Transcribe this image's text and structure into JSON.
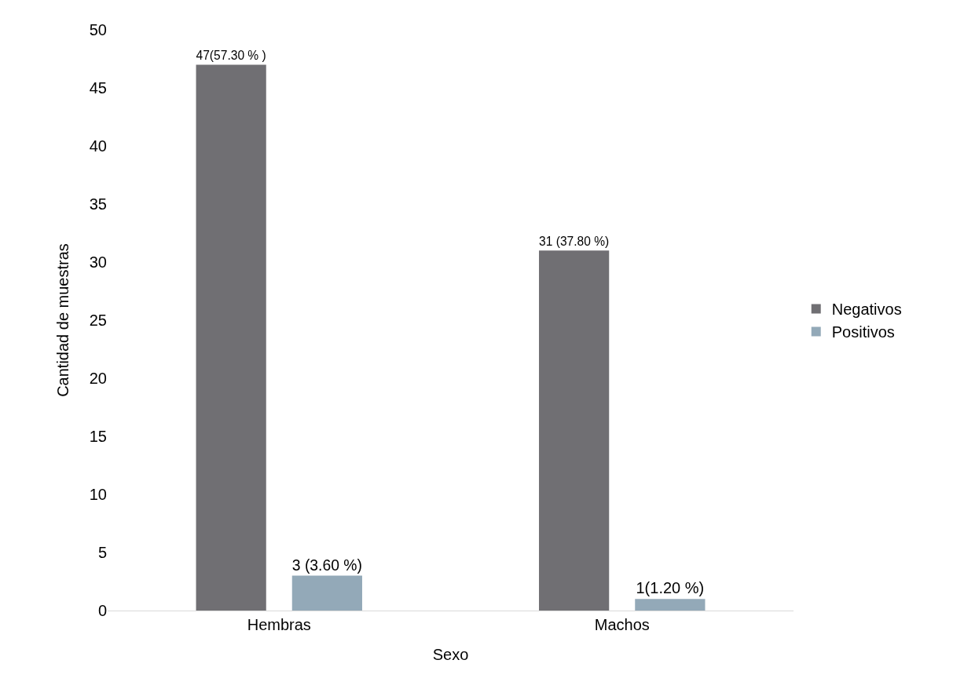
{
  "chart_data": {
    "type": "bar",
    "xlabel": "Sexo",
    "ylabel": "Cantidad de muestras",
    "categories": [
      "Hembras",
      "Machos"
    ],
    "series": [
      {
        "name": "Negativos",
        "color": "#706f73",
        "values": [
          47,
          31
        ],
        "value_labels": [
          "47(57.30 % )",
          "31 (37.80 %)"
        ]
      },
      {
        "name": "Positivos",
        "color": "#93a9b8",
        "values": [
          3,
          1
        ],
        "value_labels": [
          "3 (3.60 %)",
          "1(1.20 %)"
        ]
      }
    ],
    "ylim": [
      0,
      50
    ],
    "yticks": [
      0,
      5,
      10,
      15,
      20,
      25,
      30,
      35,
      40,
      45,
      50
    ],
    "grid": false,
    "legend": "right"
  }
}
